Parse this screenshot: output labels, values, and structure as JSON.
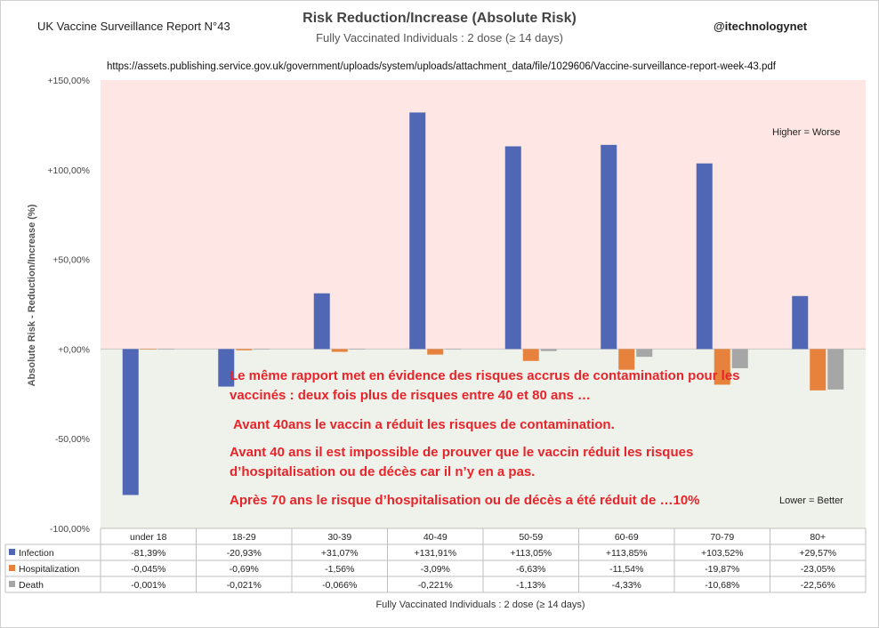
{
  "header": {
    "report_title": "UK Vaccine Surveillance Report N°43",
    "handle": "@itechnologynet",
    "source_url": "https://assets.publishing.service.gov.uk/government/uploads/system/uploads/attachment_data/file/1029606/Vaccine-surveillance-report-week-43.pdf"
  },
  "annotations": {
    "higher": "Higher = Worse",
    "lower": "Lower = Better",
    "overlay": [
      "Le même rapport met en évidence des risques accrus de contamination pour les",
      "vaccinés : deux fois plus de risques entre 40 et 80 ans …",
      "Avant 40ans le vaccin  a réduit les risques de contamination.",
      "Avant 40 ans il est impossible de prouver que le vaccin réduit les risques",
      "d’hospitalisation ou de décès car il n’y en a pas.",
      "Après  70 ans  le risque d’hospitalisation  ou de décès a été réduit de …10%"
    ]
  },
  "colors": {
    "infection": "#5067b6",
    "hospitalization": "#e6823b",
    "death": "#a6a6a6",
    "positive_zone": "#fde6e4",
    "negative_zone": "#eff2ea"
  },
  "chart_data": {
    "type": "bar",
    "title": "Risk Reduction/Increase (Absolute Risk)",
    "subtitle": "Fully Vaccinated Individuals : 2 dose (≥ 14 days)",
    "xlabel": "Fully Vaccinated Individuals : 2 dose (≥ 14 days)",
    "ylabel": "Absolute Risk - Reduction/Increase (%)",
    "ylim": [
      -100,
      150
    ],
    "yticks": [
      "+150,00%",
      "+100,00%",
      "+50,00%",
      "+0,00%",
      "-50,00%",
      "-100,00%"
    ],
    "ytick_values": [
      150,
      100,
      50,
      0,
      -50,
      -100
    ],
    "categories": [
      "under 18",
      "18-29",
      "30-39",
      "40-49",
      "50-59",
      "60-69",
      "70-79",
      "80+"
    ],
    "series": [
      {
        "name": "Infection",
        "values": [
          -81.39,
          -20.93,
          31.07,
          131.91,
          113.05,
          113.85,
          103.52,
          29.57
        ],
        "labels": [
          "-81,39%",
          "-20,93%",
          "+31,07%",
          "+131,91%",
          "+113,05%",
          "+113,85%",
          "+103,52%",
          "+29,57%"
        ]
      },
      {
        "name": "Hospitalization",
        "values": [
          -0.045,
          -0.69,
          -1.56,
          -3.09,
          -6.63,
          -11.54,
          -19.87,
          -23.05
        ],
        "labels": [
          "-0,045%",
          "-0,69%",
          "-1,56%",
          "-3,09%",
          "-6,63%",
          "-11,54%",
          "-19,87%",
          "-23,05%"
        ]
      },
      {
        "name": "Death",
        "values": [
          -0.001,
          -0.021,
          -0.066,
          -0.221,
          -1.13,
          -4.33,
          -10.68,
          -22.56
        ],
        "labels": [
          "-0,001%",
          "-0,021%",
          "-0,066%",
          "-0,221%",
          "-1,13%",
          "-4,33%",
          "-10,68%",
          "-22,56%"
        ]
      }
    ],
    "legend": "data-table"
  }
}
